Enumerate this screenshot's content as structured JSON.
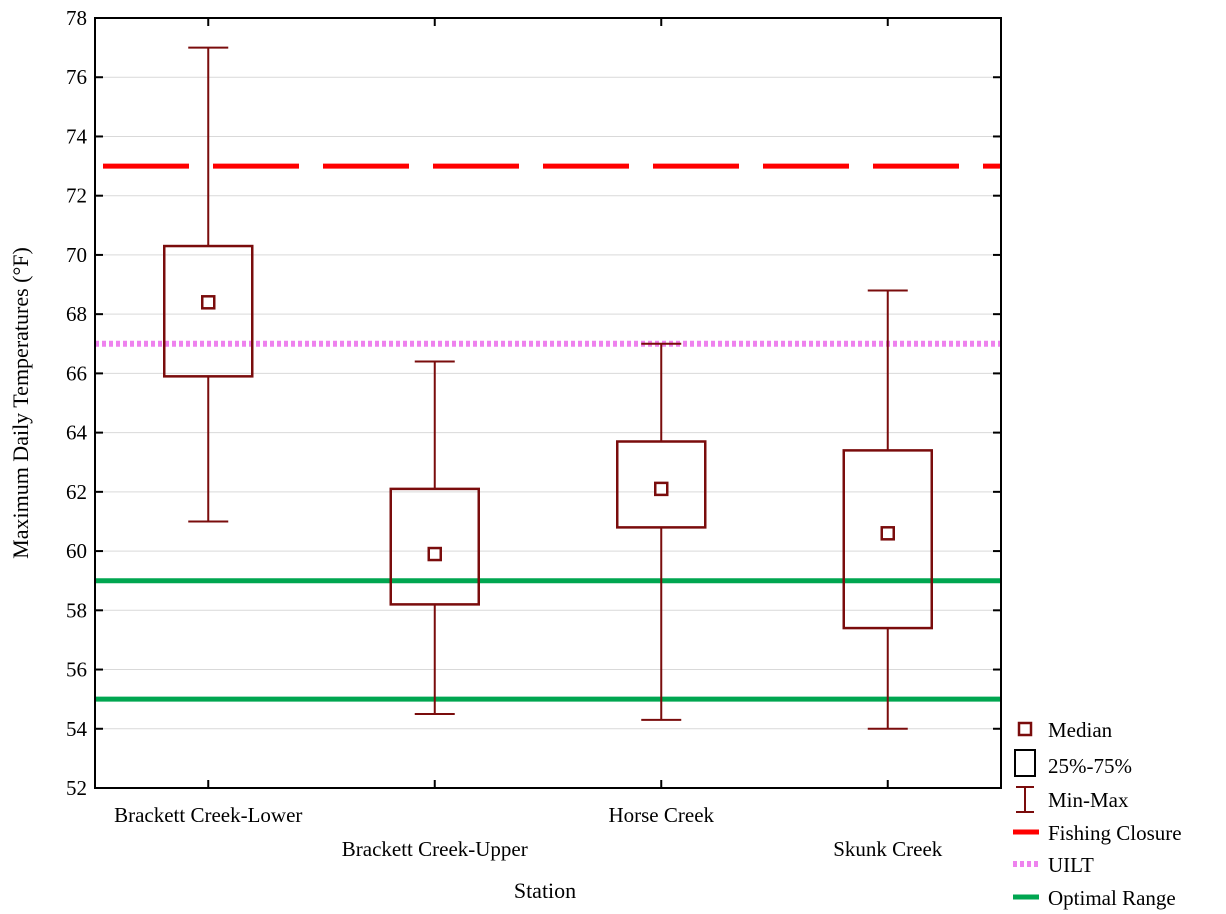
{
  "chart_data": {
    "type": "box",
    "xlabel": "Station",
    "ylabel": "Maximum Daily Temperatures (°F)",
    "ylim": [
      52,
      78
    ],
    "yticks": [
      "52",
      "54",
      "56",
      "58",
      "60",
      "62",
      "64",
      "66",
      "68",
      "70",
      "72",
      "74",
      "76",
      "78"
    ],
    "grid": true,
    "legend_position": "bottom-right",
    "colors": {
      "box": "#7a0c0c",
      "fishing_closure": "#ff0000",
      "uilt": "#ee82ee",
      "optimal_range": "#00a650",
      "grid": "#d9d9d9"
    },
    "categories": [
      "Brackett Creek-Lower",
      "Brackett Creek-Upper",
      "Horse Creek",
      "Skunk Creek"
    ],
    "boxes": [
      {
        "min": 61.0,
        "q1": 65.9,
        "median": 68.4,
        "q3": 70.3,
        "max": 77.0
      },
      {
        "min": 54.5,
        "q1": 58.2,
        "median": 59.9,
        "q3": 62.1,
        "max": 66.4
      },
      {
        "min": 54.3,
        "q1": 60.8,
        "median": 62.1,
        "q3": 63.7,
        "max": 67.0
      },
      {
        "min": 54.0,
        "q1": 57.4,
        "median": 60.6,
        "q3": 63.4,
        "max": 68.8
      }
    ],
    "reference_lines": [
      {
        "name": "Fishing Closure",
        "value": 73,
        "style": "dashed",
        "color_key": "fishing_closure"
      },
      {
        "name": "UILT",
        "value": 67,
        "style": "dotted",
        "color_key": "uilt"
      },
      {
        "name": "Optimal Range",
        "value": 59,
        "style": "solid",
        "color_key": "optimal_range"
      },
      {
        "name": "Optimal Range",
        "value": 55,
        "style": "solid",
        "color_key": "optimal_range"
      }
    ],
    "legend": [
      {
        "label": "Median",
        "symbol": "median"
      },
      {
        "label": "25%-75%",
        "symbol": "box"
      },
      {
        "label": "Min-Max",
        "symbol": "whisker"
      },
      {
        "label": "Fishing Closure",
        "symbol": "fishing_closure"
      },
      {
        "label": "UILT",
        "symbol": "uilt"
      },
      {
        "label": "Optimal Range",
        "symbol": "optimal_range"
      }
    ]
  }
}
